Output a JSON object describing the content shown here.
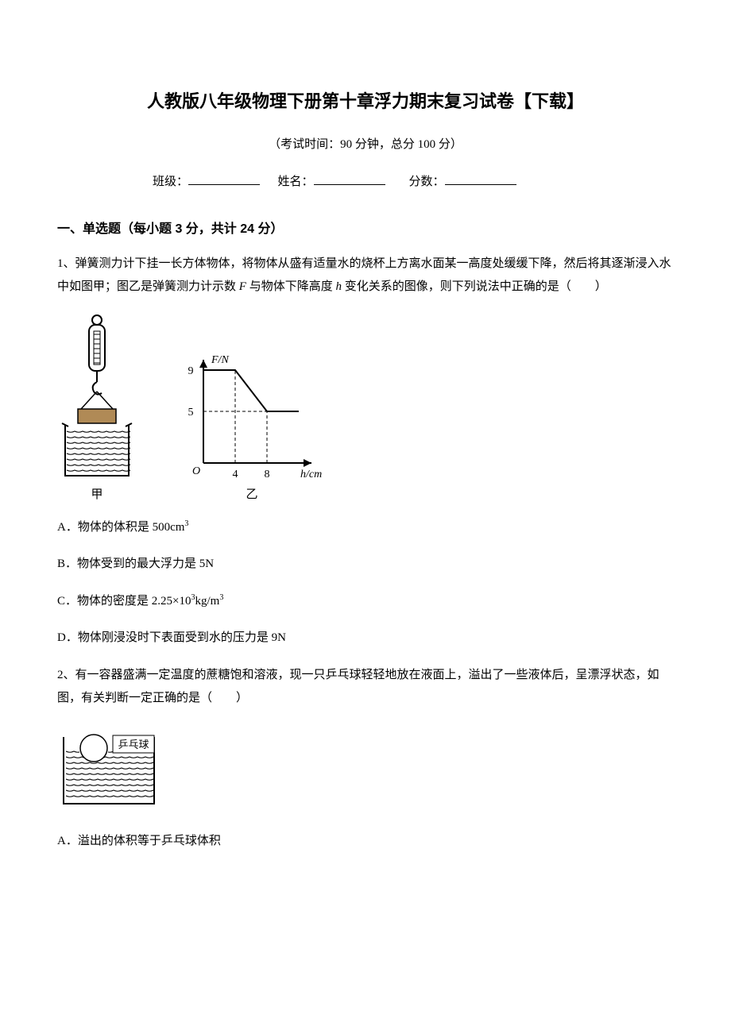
{
  "title": "人教版八年级物理下册第十章浮力期末复习试卷【下载】",
  "exam_info": "（考试时间：90 分钟，总分 100 分）",
  "blanks": {
    "class_label": "班级：",
    "name_label": "姓名：",
    "score_label": "分数："
  },
  "section1": {
    "header": "一、单选题（每小题 3 分，共计 24 分）"
  },
  "q1": {
    "stem_pre": "1、弹簧测力计下挂一长方体物体，将物体从盛有适量水的烧杯上方离水面某一高度处缓缓下降，然后将其逐渐浸入水中如图甲；图乙是弹簧测力计示数 ",
    "var_F": "F",
    "stem_mid": " 与物体下降高度 ",
    "var_h": "h",
    "stem_post": " 变化关系的图像，则下列说法中正确的是（　　）",
    "caption_left": "甲",
    "caption_right": "乙",
    "chart": {
      "type": "line",
      "y_axis_label": "F/N",
      "x_axis_label": "h/cm",
      "y_ticks": [
        5,
        9
      ],
      "x_ticks": [
        4,
        8
      ],
      "points": [
        [
          0,
          9
        ],
        [
          4,
          9
        ],
        [
          8,
          5
        ],
        [
          12,
          5
        ]
      ],
      "line_color": "#000000",
      "axis_color": "#000000",
      "dash_color": "#000000",
      "background": "#ffffff",
      "line_width": 2,
      "font_size": 14
    },
    "fig_left": {
      "beaker_stroke": "#000000",
      "water_pattern": "#000000",
      "block_fill": "#b08a56",
      "block_stroke": "#000000",
      "spring_stroke": "#000000",
      "hook_stroke": "#000000"
    },
    "optA": "A．物体的体积是 500cm",
    "optA_sup": "3",
    "optB": "B．物体受到的最大浮力是 5N",
    "optC_pre": "C．物体的密度是 2.25×10",
    "optC_sup1": "3",
    "optC_mid": "kg/m",
    "optC_sup2": "3",
    "optD": "D．物体刚浸没时下表面受到水的压力是 9N"
  },
  "q2": {
    "stem": "2、有一容器盛满一定温度的蔗糖饱和溶液，现一只乒乓球轻轻地放在液面上，溢出了一些液体后，呈漂浮状态，如图，有关判断一定正确的是（　　）",
    "fig": {
      "beaker_stroke": "#000000",
      "water_pattern": "#000000",
      "ball_fill": "#ffffff",
      "ball_stroke": "#000000",
      "label": "乒乓球",
      "label_fontsize": 13
    },
    "optA": "A．溢出的体积等于乒乓球体积"
  }
}
